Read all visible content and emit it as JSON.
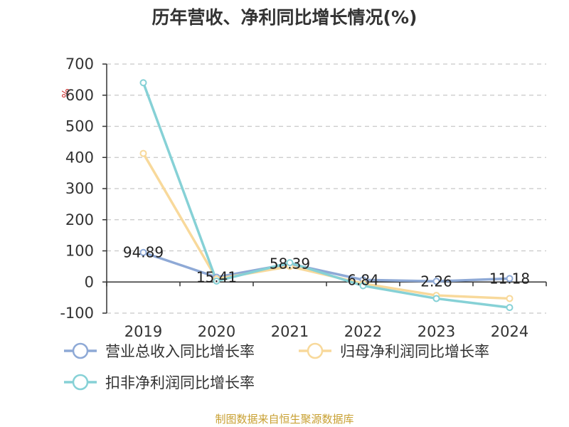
{
  "chart_data": {
    "type": "line",
    "title": "历年营收、净利同比增长情况(%)",
    "ylabel": "%",
    "categories": [
      "2019",
      "2020",
      "2021",
      "2022",
      "2023",
      "2024"
    ],
    "ylim": [
      -100,
      700
    ],
    "yticks": [
      "700",
      "600",
      "500",
      "400",
      "300",
      "200",
      "100",
      "0",
      "-100"
    ],
    "grid": true,
    "legend_position": "bottom",
    "series": [
      {
        "name": "营业总收入同比增长率",
        "color": "#8ea9d6",
        "values": [
          94.89,
          15.41,
          58.39,
          6.84,
          2.26,
          11.18
        ]
      },
      {
        "name": "归母净利润同比增长率",
        "color": "#f8d99b",
        "values": [
          413,
          10,
          50,
          -5,
          -43,
          -53
        ]
      },
      {
        "name": "扣非净利润同比增长率",
        "color": "#86d1d6",
        "values": [
          640,
          3,
          62,
          -12,
          -53,
          -82
        ]
      }
    ],
    "data_labels": [
      "94.89",
      "15.41",
      "58.39",
      "6.84",
      "2.26",
      "11.18"
    ],
    "source": "制图数据来自恒生聚源数据库"
  }
}
